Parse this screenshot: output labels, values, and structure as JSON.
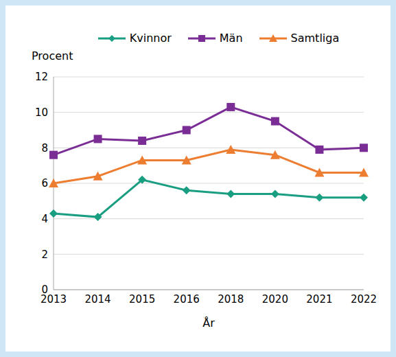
{
  "chart_data": {
    "type": "line",
    "x_label": "År",
    "y_label": "Procent",
    "categories": [
      "2013",
      "2014",
      "2015",
      "2016",
      "2018",
      "2020",
      "2021",
      "2022"
    ],
    "series": [
      {
        "name": "Kvinnor",
        "color": "#1a9e82",
        "marker": "diamond",
        "values": [
          4.3,
          4.1,
          6.2,
          5.6,
          5.4,
          5.4,
          5.2,
          5.2
        ]
      },
      {
        "name": "Män",
        "color": "#7b2d96",
        "marker": "square",
        "values": [
          7.6,
          8.5,
          8.4,
          9.0,
          10.3,
          9.5,
          7.9,
          8.0
        ]
      },
      {
        "name": "Samtliga",
        "color": "#ed7d31",
        "marker": "triangle",
        "values": [
          6.0,
          6.4,
          7.3,
          7.3,
          7.9,
          7.6,
          6.6,
          6.6
        ]
      }
    ],
    "ylim": [
      0,
      12
    ],
    "yticks": [
      0,
      2,
      4,
      6,
      8,
      10,
      12
    ],
    "grid": true,
    "legend": "top"
  }
}
